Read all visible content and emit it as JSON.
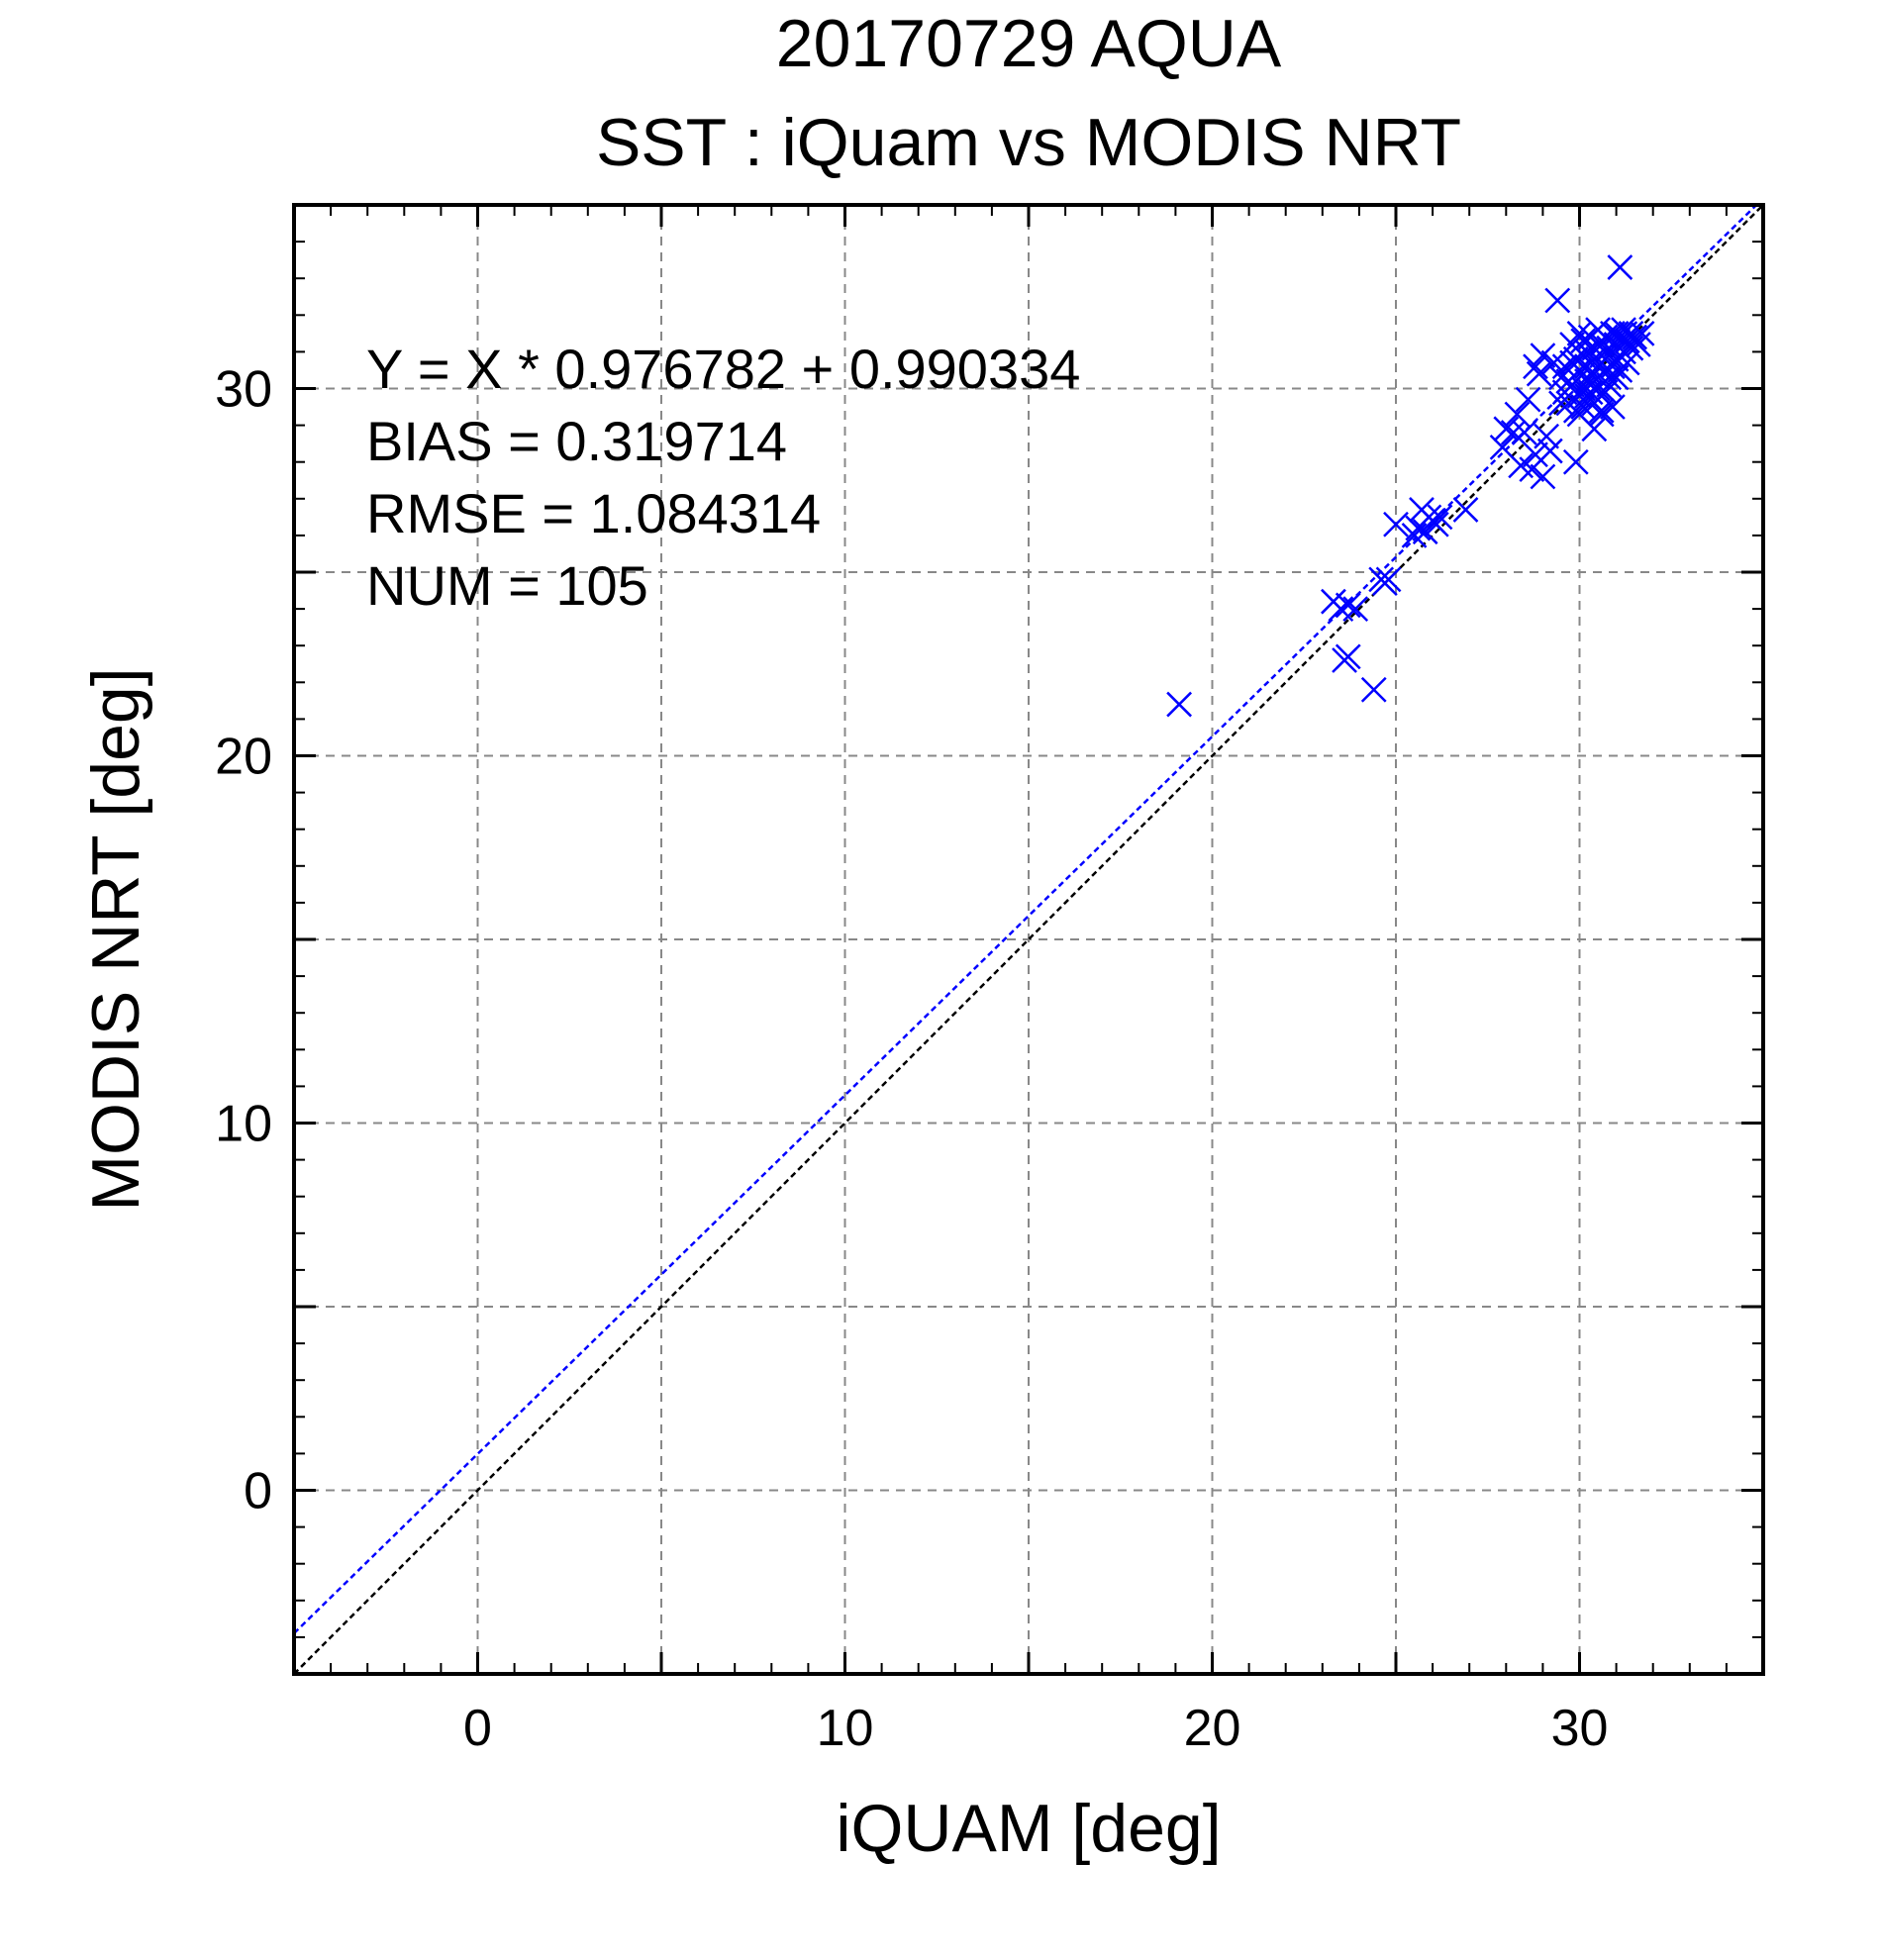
{
  "title": "20170729 AQUA",
  "subtitle": "SST : iQuam vs MODIS NRT",
  "stats": {
    "equation": "Y = X * 0.976782 + 0.990334",
    "bias": "BIAS = 0.319714",
    "rmse": "RMSE = 1.084314",
    "num": "NUM = 105"
  },
  "colors": {
    "points": "#0000ff",
    "fit_line": "#0000ff",
    "identity_line": "#000000",
    "grid": "#888888"
  },
  "chart_data": {
    "type": "scatter",
    "xlabel": "iQUAM [deg]",
    "ylabel": "MODIS NRT [deg]",
    "xlim": [
      -5,
      35
    ],
    "ylim": [
      -5,
      35
    ],
    "xticks": [
      0,
      10,
      20,
      30
    ],
    "yticks": [
      0,
      10,
      20,
      30
    ],
    "grid": true,
    "marker": "x",
    "fit": {
      "slope": 0.976782,
      "intercept": 0.990334
    },
    "identity_line": true,
    "points": [
      [
        19.1,
        21.4
      ],
      [
        23.3,
        24.2
      ],
      [
        23.5,
        24.0
      ],
      [
        23.7,
        24.1
      ],
      [
        23.9,
        24.0
      ],
      [
        23.6,
        22.6
      ],
      [
        23.7,
        22.7
      ],
      [
        24.4,
        21.8
      ],
      [
        24.6,
        24.8
      ],
      [
        24.7,
        24.7
      ],
      [
        24.8,
        24.8
      ],
      [
        25.0,
        26.3
      ],
      [
        25.5,
        26.0
      ],
      [
        25.6,
        26.2
      ],
      [
        25.7,
        26.7
      ],
      [
        25.8,
        26.1
      ],
      [
        25.9,
        26.5
      ],
      [
        26.0,
        26.4
      ],
      [
        26.1,
        26.3
      ],
      [
        26.2,
        26.5
      ],
      [
        26.9,
        26.7
      ],
      [
        27.9,
        28.4
      ],
      [
        28.0,
        28.9
      ],
      [
        28.2,
        28.8
      ],
      [
        28.3,
        29.3
      ],
      [
        28.4,
        27.9
      ],
      [
        28.5,
        28.8
      ],
      [
        28.6,
        29.7
      ],
      [
        28.7,
        27.8
      ],
      [
        28.8,
        28.2
      ],
      [
        28.8,
        30.6
      ],
      [
        28.9,
        30.4
      ],
      [
        29.0,
        30.9
      ],
      [
        29.0,
        27.6
      ],
      [
        29.1,
        28.7
      ],
      [
        29.2,
        28.3
      ],
      [
        29.3,
        30.7
      ],
      [
        29.4,
        32.4
      ],
      [
        29.5,
        30.3
      ],
      [
        29.6,
        30.6
      ],
      [
        29.6,
        29.9
      ],
      [
        29.7,
        30.2
      ],
      [
        29.7,
        29.6
      ],
      [
        29.8,
        30.1
      ],
      [
        29.8,
        31.2
      ],
      [
        29.9,
        29.4
      ],
      [
        29.9,
        28.0
      ],
      [
        30.0,
        30.5
      ],
      [
        30.0,
        29.8
      ],
      [
        30.0,
        31.5
      ],
      [
        30.1,
        30.9
      ],
      [
        30.1,
        30.0
      ],
      [
        30.1,
        29.5
      ],
      [
        30.2,
        30.6
      ],
      [
        30.2,
        31.0
      ],
      [
        30.2,
        30.2
      ],
      [
        30.3,
        29.9
      ],
      [
        30.3,
        31.4
      ],
      [
        30.3,
        30.4
      ],
      [
        30.4,
        30.8
      ],
      [
        30.4,
        29.6
      ],
      [
        30.4,
        31.1
      ],
      [
        30.5,
        30.3
      ],
      [
        30.5,
        31.6
      ],
      [
        30.5,
        30.0
      ],
      [
        30.6,
        30.7
      ],
      [
        30.6,
        29.3
      ],
      [
        30.6,
        31.2
      ],
      [
        30.7,
        30.5
      ],
      [
        30.7,
        29.9
      ],
      [
        30.7,
        31.4
      ],
      [
        30.8,
        30.9
      ],
      [
        30.8,
        30.1
      ],
      [
        30.8,
        31.1
      ],
      [
        30.9,
        30.6
      ],
      [
        30.9,
        29.5
      ],
      [
        30.9,
        31.5
      ],
      [
        31.0,
        30.3
      ],
      [
        31.0,
        31.2
      ],
      [
        31.0,
        30.8
      ],
      [
        31.1,
        31.4
      ],
      [
        31.1,
        30.5
      ],
      [
        31.1,
        33.3
      ],
      [
        31.2,
        31.0
      ],
      [
        31.2,
        31.6
      ],
      [
        31.3,
        31.3
      ],
      [
        31.3,
        30.7
      ],
      [
        31.4,
        31.5
      ],
      [
        31.4,
        31.1
      ],
      [
        31.5,
        31.4
      ],
      [
        31.6,
        31.2
      ],
      [
        31.7,
        31.5
      ],
      [
        30.4,
        28.9
      ],
      [
        30.6,
        29.4
      ],
      [
        30.0,
        29.3
      ],
      [
        30.3,
        30.1
      ],
      [
        29.9,
        30.8
      ],
      [
        30.1,
        31.3
      ],
      [
        30.5,
        30.6
      ],
      [
        30.8,
        30.3
      ],
      [
        31.2,
        31.3
      ],
      [
        30.2,
        29.8
      ],
      [
        29.5,
        29.6
      ],
      [
        29.8,
        30.7
      ],
      [
        31.0,
        31.5
      ]
    ]
  }
}
